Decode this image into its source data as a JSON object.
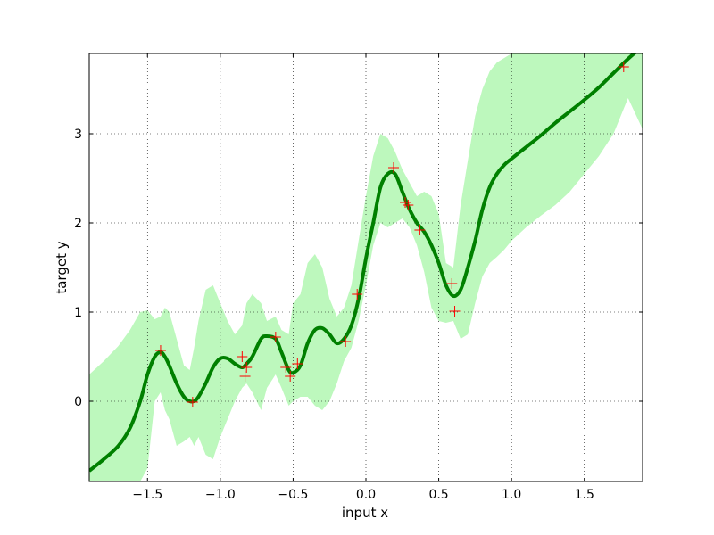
{
  "chart_data": {
    "type": "line",
    "title": "",
    "xlabel": "input x",
    "ylabel": "target y",
    "xlim": [
      -1.9,
      1.9
    ],
    "ylim": [
      -0.9,
      3.9
    ],
    "grid": true,
    "xticks": [
      -1.5,
      -1.0,
      -0.5,
      0.0,
      0.5,
      1.0,
      1.5
    ],
    "xtick_labels": [
      "−1.5",
      "−1.0",
      "−0.5",
      "0.0",
      "0.5",
      "1.0",
      "1.5"
    ],
    "yticks": [
      0,
      1,
      2,
      3
    ],
    "ytick_labels": [
      "0",
      "1",
      "2",
      "3"
    ],
    "colors": {
      "mean_line": "#008000",
      "band_fill": "#bdf8bd",
      "markers": "#ff0000"
    },
    "mean": {
      "x": [
        -1.9,
        -1.8,
        -1.7,
        -1.62,
        -1.55,
        -1.5,
        -1.45,
        -1.41,
        -1.38,
        -1.35,
        -1.3,
        -1.25,
        -1.21,
        -1.18,
        -1.15,
        -1.1,
        -1.05,
        -1.0,
        -0.95,
        -0.9,
        -0.85,
        -0.82,
        -0.78,
        -0.72,
        -0.68,
        -0.62,
        -0.58,
        -0.53,
        -0.5,
        -0.45,
        -0.4,
        -0.35,
        -0.3,
        -0.25,
        -0.2,
        -0.15,
        -0.1,
        -0.05,
        0.0,
        0.05,
        0.1,
        0.15,
        0.2,
        0.25,
        0.3,
        0.35,
        0.4,
        0.45,
        0.5,
        0.55,
        0.6,
        0.65,
        0.7,
        0.75,
        0.8,
        0.85,
        0.9,
        0.95,
        1.0,
        1.1,
        1.2,
        1.3,
        1.4,
        1.5,
        1.6,
        1.7,
        1.8,
        1.9
      ],
      "y": [
        -0.78,
        -0.65,
        -0.5,
        -0.3,
        0.0,
        0.3,
        0.5,
        0.55,
        0.5,
        0.4,
        0.2,
        0.05,
        0.0,
        0.0,
        0.05,
        0.2,
        0.38,
        0.48,
        0.48,
        0.42,
        0.38,
        0.42,
        0.5,
        0.7,
        0.73,
        0.7,
        0.55,
        0.35,
        0.32,
        0.4,
        0.65,
        0.8,
        0.82,
        0.75,
        0.65,
        0.7,
        0.85,
        1.15,
        1.6,
        2.0,
        2.4,
        2.55,
        2.55,
        2.35,
        2.15,
        2.0,
        1.9,
        1.75,
        1.55,
        1.3,
        1.18,
        1.25,
        1.5,
        1.8,
        2.15,
        2.4,
        2.55,
        2.65,
        2.72,
        2.85,
        2.98,
        3.12,
        3.25,
        3.38,
        3.52,
        3.68,
        3.84,
        3.98
      ]
    },
    "band": {
      "x": [
        -1.9,
        -1.8,
        -1.7,
        -1.62,
        -1.55,
        -1.5,
        -1.45,
        -1.41,
        -1.38,
        -1.35,
        -1.3,
        -1.25,
        -1.21,
        -1.18,
        -1.15,
        -1.1,
        -1.05,
        -1.0,
        -0.95,
        -0.9,
        -0.85,
        -0.82,
        -0.78,
        -0.72,
        -0.68,
        -0.62,
        -0.58,
        -0.53,
        -0.5,
        -0.45,
        -0.4,
        -0.35,
        -0.3,
        -0.25,
        -0.2,
        -0.15,
        -0.1,
        -0.05,
        0.0,
        0.05,
        0.1,
        0.15,
        0.2,
        0.25,
        0.3,
        0.35,
        0.4,
        0.45,
        0.5,
        0.55,
        0.6,
        0.65,
        0.7,
        0.75,
        0.8,
        0.85,
        0.9,
        0.95,
        1.0,
        1.1,
        1.2,
        1.3,
        1.4,
        1.5,
        1.6,
        1.7,
        1.8,
        1.9
      ],
      "upper": [
        0.3,
        0.45,
        0.62,
        0.8,
        1.0,
        1.02,
        0.92,
        0.95,
        1.05,
        1.0,
        0.7,
        0.4,
        0.35,
        0.6,
        0.9,
        1.25,
        1.3,
        1.1,
        0.9,
        0.75,
        0.85,
        1.1,
        1.2,
        1.1,
        0.9,
        0.95,
        0.8,
        0.75,
        1.1,
        1.2,
        1.55,
        1.65,
        1.5,
        1.15,
        0.95,
        1.05,
        1.3,
        1.8,
        2.3,
        2.75,
        3.0,
        2.95,
        2.8,
        2.6,
        2.45,
        2.3,
        2.35,
        2.3,
        2.1,
        1.55,
        1.5,
        2.2,
        2.7,
        3.2,
        3.5,
        3.7,
        3.8,
        3.85,
        3.9,
        3.9,
        3.9,
        3.9,
        3.9,
        3.9,
        3.9,
        3.9,
        3.9,
        3.9
      ],
      "lower": [
        -1.5,
        -1.4,
        -1.2,
        -1.0,
        -0.9,
        -0.75,
        0.0,
        0.1,
        -0.1,
        -0.2,
        -0.5,
        -0.45,
        -0.4,
        -0.5,
        -0.4,
        -0.6,
        -0.65,
        -0.4,
        -0.2,
        0.0,
        0.15,
        0.2,
        0.1,
        -0.1,
        0.15,
        0.3,
        0.15,
        -0.05,
        0.0,
        0.05,
        0.05,
        -0.05,
        -0.1,
        0.0,
        0.2,
        0.45,
        0.6,
        0.9,
        1.3,
        1.75,
        2.0,
        1.95,
        2.0,
        2.05,
        1.95,
        1.75,
        1.45,
        1.05,
        0.9,
        0.88,
        0.9,
        0.7,
        0.75,
        1.1,
        1.4,
        1.55,
        1.62,
        1.7,
        1.8,
        1.95,
        2.08,
        2.2,
        2.35,
        2.55,
        2.75,
        3.0,
        3.4,
        3.05
      ]
    },
    "points": {
      "x": [
        -1.41,
        -1.19,
        -0.85,
        -0.83,
        -0.82,
        -0.62,
        -0.55,
        -0.52,
        -0.47,
        -0.14,
        -0.06,
        0.19,
        0.27,
        0.29,
        0.37,
        0.59,
        0.61,
        1.77
      ],
      "y": [
        0.57,
        -0.01,
        0.5,
        0.28,
        0.38,
        0.72,
        0.38,
        0.28,
        0.42,
        0.67,
        1.2,
        2.62,
        2.23,
        2.2,
        1.92,
        1.32,
        1.01,
        3.75
      ]
    }
  }
}
